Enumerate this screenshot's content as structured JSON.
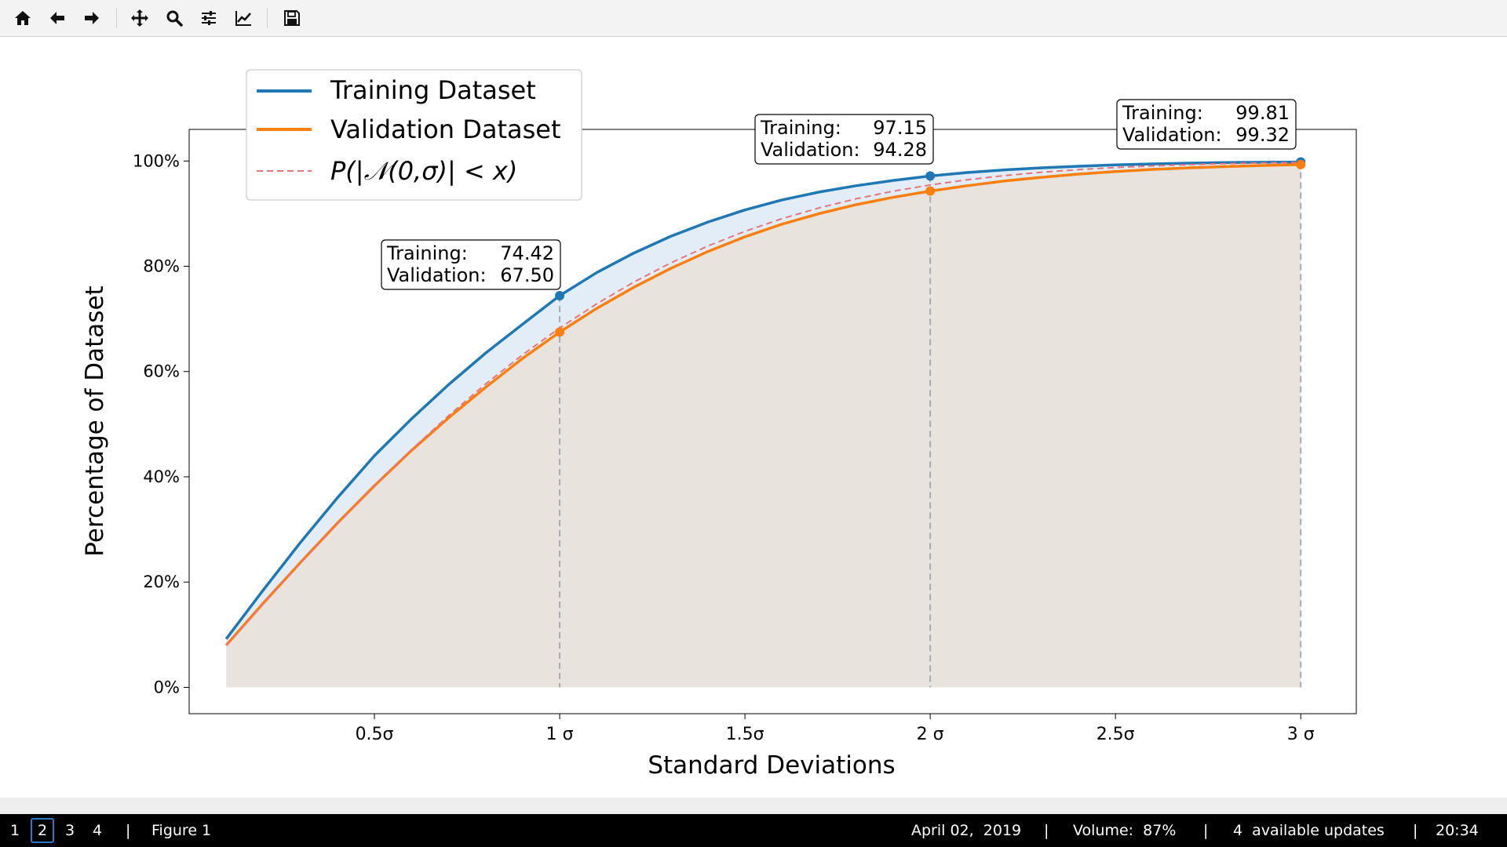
{
  "toolbar": {
    "buttons": [
      {
        "name": "home-button",
        "icon": "home-icon"
      },
      {
        "name": "back-button",
        "icon": "arrow-left-icon"
      },
      {
        "name": "forward-button",
        "icon": "arrow-right-icon"
      },
      {
        "name": "pan-button",
        "icon": "move-icon"
      },
      {
        "name": "zoom-button",
        "icon": "magnifier-icon"
      },
      {
        "name": "configure-subplots-button",
        "icon": "sliders-icon"
      },
      {
        "name": "edit-axis-button",
        "icon": "line-chart-icon"
      },
      {
        "name": "save-button",
        "icon": "floppy-disk-icon"
      }
    ]
  },
  "chart_data": {
    "type": "line",
    "title": "",
    "xlabel": "Standard Deviations",
    "ylabel": "Percentage of Dataset",
    "xlim": [
      0,
      3.15
    ],
    "ylim": [
      -5,
      106
    ],
    "x_ticks": [
      {
        "value": 0.5,
        "label": "0.5σ"
      },
      {
        "value": 1,
        "label": "1 σ"
      },
      {
        "value": 1.5,
        "label": "1.5σ"
      },
      {
        "value": 2,
        "label": "2 σ"
      },
      {
        "value": 2.5,
        "label": "2.5σ"
      },
      {
        "value": 3,
        "label": "3 σ"
      }
    ],
    "y_ticks": [
      {
        "value": 0,
        "label": "0%"
      },
      {
        "value": 20,
        "label": "20%"
      },
      {
        "value": 40,
        "label": "40%"
      },
      {
        "value": 60,
        "label": "60%"
      },
      {
        "value": 80,
        "label": "80%"
      },
      {
        "value": 100,
        "label": "100%"
      }
    ],
    "grid": false,
    "legend_position": "upper-left",
    "x": [
      0.1,
      0.2,
      0.3,
      0.4,
      0.5,
      0.6,
      0.7,
      0.8,
      0.9,
      1.0,
      1.1,
      1.2,
      1.3,
      1.4,
      1.5,
      1.6,
      1.7,
      1.8,
      1.9,
      2.0,
      2.1,
      2.2,
      2.3,
      2.4,
      2.5,
      2.6,
      2.7,
      2.8,
      2.9,
      3.0
    ],
    "series": [
      {
        "name": "Training Dataset",
        "color": "#1f77b4",
        "style": "solid",
        "values": [
          9.2,
          18.5,
          27.5,
          36.0,
          44.0,
          51.0,
          57.5,
          63.5,
          69.0,
          74.42,
          78.8,
          82.5,
          85.7,
          88.4,
          90.7,
          92.6,
          94.1,
          95.3,
          96.3,
          97.15,
          97.8,
          98.3,
          98.7,
          99.0,
          99.25,
          99.45,
          99.6,
          99.7,
          99.76,
          99.81
        ]
      },
      {
        "name": "Validation Dataset",
        "color": "#ff7f0e",
        "style": "solid",
        "values": [
          8.0,
          16.0,
          23.7,
          31.2,
          38.3,
          45.0,
          51.2,
          57.0,
          62.5,
          67.5,
          72.0,
          76.0,
          79.6,
          82.8,
          85.6,
          88.0,
          90.0,
          91.7,
          93.1,
          94.28,
          95.3,
          96.2,
          96.9,
          97.5,
          98.0,
          98.4,
          98.7,
          98.95,
          99.15,
          99.32
        ]
      },
      {
        "name": "P(|𝒩(0,σ)| < x)",
        "color": "#e8747c",
        "style": "dashed",
        "values": [
          7.97,
          15.85,
          23.58,
          31.08,
          38.29,
          45.15,
          51.61,
          57.63,
          63.19,
          68.27,
          72.87,
          76.99,
          80.64,
          83.85,
          86.64,
          89.04,
          91.09,
          92.81,
          94.26,
          95.45,
          96.43,
          97.22,
          97.86,
          98.36,
          98.76,
          99.07,
          99.31,
          99.49,
          99.63,
          99.73
        ]
      }
    ],
    "markers": [
      {
        "x": 1,
        "training": 74.42,
        "validation": 67.5
      },
      {
        "x": 2,
        "training": 97.15,
        "validation": 94.28
      },
      {
        "x": 3,
        "training": 99.81,
        "validation": 99.32
      }
    ],
    "annotations": [
      {
        "line1_label": "Training:",
        "line1_value": "74.42",
        "line2_label": "Validation:",
        "line2_value": "67.50"
      },
      {
        "line1_label": "Training:",
        "line1_value": "97.15",
        "line2_label": "Validation:",
        "line2_value": "94.28"
      },
      {
        "line1_label": "Training:",
        "line1_value": "99.81",
        "line2_label": "Validation:",
        "line2_value": "99.32"
      }
    ],
    "fill_colors": {
      "between": "#e3edf7",
      "below": "#e9e3dd"
    },
    "reference_line_color": "#aaaaaa"
  },
  "statusbar": {
    "workspaces": [
      "1",
      "2",
      "3",
      "4"
    ],
    "active_workspace": "2",
    "separator": "|",
    "window_title": "Figure 1",
    "date": "April 02,  2019",
    "volume": "Volume:  87%",
    "updates": "4  available updates",
    "time": "20:34"
  }
}
